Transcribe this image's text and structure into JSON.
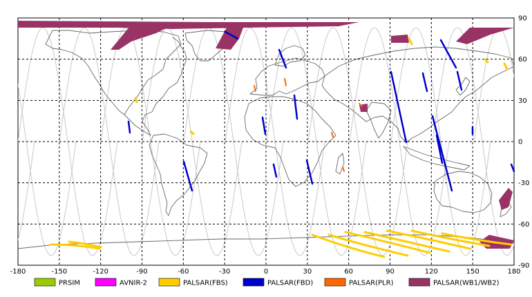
{
  "map": {
    "lon_range": [
      -180,
      180
    ],
    "lat_range": [
      -90,
      90
    ],
    "lon_ticks": [
      "-180",
      "-150",
      "-120",
      "-90",
      "-60",
      "-30",
      "0",
      "30",
      "60",
      "90",
      "120",
      "150",
      "180"
    ],
    "lat_ticks": [
      "90",
      "60",
      "30",
      "0",
      "-30",
      "-60",
      "-90"
    ],
    "grid": "dashed",
    "legend_position": "bottom",
    "legend": [
      {
        "label": "PRSIM",
        "color": "#99cc00"
      },
      {
        "label": "AVNIR-2",
        "color": "#ff00ff"
      },
      {
        "label": "PALSAR(FBS)",
        "color": "#ffcc00"
      },
      {
        "label": "PALSAR(FBD)",
        "color": "#0000cc"
      },
      {
        "label": "PALSAR(PLR)",
        "color": "#ff6600"
      },
      {
        "label": "PALSAR(WB1/WB2)",
        "color": "#993366"
      }
    ]
  }
}
